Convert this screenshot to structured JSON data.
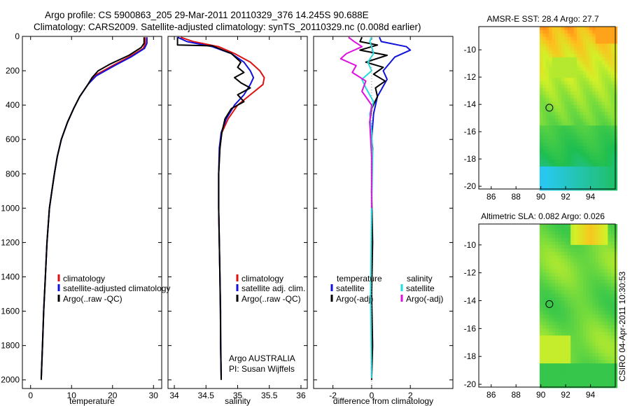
{
  "header": {
    "line1": "Argo profile: CS 5900863_205 29-Mar-2011 20110329_376 14.245S 90.688E",
    "line2": "Climatology: CARS2009. Satellite-adjusted climatology: synTS_20110329.nc (0.008d earlier)"
  },
  "side_label": "CSIRO 04-Apr-2011 10:30:53",
  "colors": {
    "climatology": "#dd1111",
    "satellite": "#1111dd",
    "argo": "#000000",
    "salinity_satellite": "#22dddd",
    "salinity_argo": "#dd11dd"
  },
  "chart_data": [
    {
      "type": "line",
      "id": "temperature",
      "xlabel": "temperature",
      "ylabel": "",
      "xlim": [
        -2,
        32
      ],
      "ylim": [
        2050,
        0
      ],
      "xticks": [
        "0",
        "10",
        "20",
        "30"
      ],
      "yticks": [
        "0",
        "200",
        "400",
        "600",
        "800",
        "1000",
        "1200",
        "1400",
        "1600",
        "1800",
        "2000"
      ],
      "legend": [
        "climatology",
        "satellite-adjusted climatology",
        "Argo(..raw -QC)"
      ],
      "series": [
        {
          "name": "climatology",
          "color_key": "climatology",
          "x": [
            28.0,
            28.0,
            27.5,
            24.0,
            20.0,
            15.5,
            14.0,
            12.0,
            10.5,
            9.0,
            7.5,
            6.5,
            5.8,
            5.2,
            4.6,
            4.0,
            3.6,
            3.2,
            2.9,
            2.6
          ],
          "y": [
            5,
            40,
            70,
            120,
            170,
            230,
            280,
            350,
            420,
            500,
            600,
            700,
            800,
            900,
            1000,
            1200,
            1400,
            1600,
            1800,
            1990
          ]
        },
        {
          "name": "satellite-adjusted climatology",
          "color_key": "satellite",
          "x": [
            28.4,
            28.4,
            27.8,
            24.5,
            20.5,
            16.0,
            14.0,
            12.0,
            10.5,
            9.0,
            7.5,
            6.5,
            5.8,
            5.2,
            4.6,
            4.0,
            3.6,
            3.2,
            2.9,
            2.6
          ],
          "y": [
            5,
            40,
            70,
            120,
            170,
            230,
            280,
            350,
            420,
            500,
            600,
            700,
            800,
            900,
            1000,
            1200,
            1400,
            1600,
            1800,
            1990
          ]
        },
        {
          "name": "Argo(..raw -QC)",
          "color_key": "argo",
          "x": [
            27.7,
            27.7,
            27.0,
            24.0,
            19.5,
            16.5,
            15.0,
            14.0,
            12.0,
            10.5,
            9.0,
            7.5,
            6.5,
            5.8,
            5.2,
            4.6,
            4.0,
            3.6,
            3.2,
            2.9,
            2.6
          ],
          "y": [
            5,
            40,
            65,
            110,
            160,
            200,
            240,
            280,
            350,
            420,
            500,
            600,
            700,
            800,
            900,
            1000,
            1200,
            1400,
            1600,
            1800,
            2000
          ]
        }
      ]
    },
    {
      "type": "line",
      "id": "salinity",
      "xlabel": "salinity",
      "ylabel": "",
      "xlim": [
        33.9,
        36.1
      ],
      "ylim": [
        2050,
        0
      ],
      "xticks": [
        "34",
        "34.5",
        "35",
        "35.5",
        "36"
      ],
      "legend": [
        "climatology",
        "satellite adj. clim.",
        "Argo(..raw -QC)"
      ],
      "annotations": [
        "Argo AUSTRALIA",
        "PI: Susan Wijffels"
      ],
      "series": [
        {
          "name": "climatology",
          "color_key": "climatology",
          "x": [
            34.1,
            34.3,
            34.7,
            34.95,
            35.2,
            35.35,
            35.42,
            35.4,
            35.2,
            35.0,
            34.85,
            34.75,
            34.72,
            34.7,
            34.7,
            34.71,
            34.72,
            34.73,
            34.73,
            34.74
          ],
          "y": [
            5,
            30,
            60,
            100,
            150,
            200,
            240,
            280,
            340,
            400,
            480,
            560,
            650,
            800,
            1000,
            1200,
            1400,
            1600,
            1800,
            1990
          ]
        },
        {
          "name": "satellite adj. clim.",
          "color_key": "satellite",
          "x": [
            34.05,
            34.2,
            34.6,
            34.9,
            35.1,
            35.2,
            35.25,
            35.2,
            35.1,
            34.95,
            34.82,
            34.74,
            34.71,
            34.7,
            34.7,
            34.71,
            34.72,
            34.73,
            34.73,
            34.74
          ],
          "y": [
            5,
            30,
            60,
            100,
            150,
            200,
            240,
            280,
            340,
            400,
            480,
            560,
            650,
            800,
            1000,
            1200,
            1400,
            1600,
            1800,
            1990
          ]
        },
        {
          "name": "Argo(..raw -QC)",
          "color_key": "argo",
          "x": [
            34.05,
            34.05,
            34.6,
            34.9,
            35.05,
            35.0,
            35.1,
            34.95,
            35.05,
            35.2,
            35.0,
            35.1,
            34.9,
            34.8,
            34.75,
            34.72,
            34.7,
            34.7,
            34.71,
            34.72,
            34.73,
            34.74
          ],
          "y": [
            5,
            50,
            55,
            100,
            150,
            180,
            210,
            240,
            270,
            300,
            340,
            380,
            420,
            480,
            560,
            650,
            800,
            1000,
            1200,
            1400,
            1700,
            2000
          ]
        }
      ]
    },
    {
      "type": "line",
      "id": "difference",
      "xlabel": "difference from climatology",
      "ylabel": "",
      "xlim": [
        -3,
        4.2
      ],
      "ylim": [
        2050,
        0
      ],
      "xticks": [
        "-2",
        "0",
        "2"
      ],
      "legend": [
        "temperature",
        "satellite",
        "Argo(-adj)",
        "salinity",
        "satellite",
        "Argo(-adj)"
      ],
      "series": [
        {
          "name": "satellite",
          "legend_group": "temperature",
          "color_key": "satellite",
          "x": [
            0.4,
            0.5,
            1.8,
            2.0,
            1.2,
            0.6,
            0.8,
            0.3,
            0.1,
            0.0,
            0.0,
            0.0,
            0.0
          ],
          "y": [
            5,
            30,
            60,
            80,
            120,
            200,
            250,
            350,
            450,
            600,
            1000,
            1500,
            1990
          ]
        },
        {
          "name": "Argo(-adj)",
          "legend_group": "temperature",
          "color_key": "argo",
          "x": [
            -0.5,
            -0.6,
            0.3,
            -0.6,
            0.8,
            -0.3,
            0.6,
            0.1,
            0.7,
            0.2,
            0.3,
            0.0,
            -0.1,
            0.05,
            0.0,
            0.05,
            0.0,
            0.05,
            0.0
          ],
          "y": [
            5,
            30,
            50,
            80,
            110,
            150,
            180,
            220,
            260,
            300,
            350,
            420,
            500,
            650,
            900,
            1200,
            1500,
            1800,
            2000
          ]
        },
        {
          "name": "satellite",
          "legend_group": "salinity",
          "color_key": "salinity_satellite",
          "x": [
            0.0,
            -0.1,
            0.0,
            0.1,
            -0.2,
            0.0,
            -0.5,
            -0.3,
            0.1,
            -0.1,
            0.0,
            0.05,
            0.0,
            -0.05,
            0.0
          ],
          "y": [
            5,
            30,
            60,
            100,
            150,
            200,
            250,
            300,
            380,
            450,
            550,
            700,
            1000,
            1500,
            1990
          ]
        },
        {
          "name": "Argo(-adj)",
          "legend_group": "salinity",
          "color_key": "salinity_argo",
          "x": [
            -1.2,
            -0.9,
            -0.5,
            -1.3,
            -1.6,
            -0.8,
            -1.0,
            -0.3,
            -0.5,
            0.0,
            -0.1,
            0.0,
            0.0
          ],
          "y": [
            5,
            30,
            60,
            100,
            130,
            170,
            210,
            260,
            320,
            400,
            500,
            700,
            1000
          ]
        }
      ]
    },
    {
      "type": "heatmap",
      "id": "sst",
      "title": "AMSR-E SST: 28.4 Argo: 27.7",
      "xlim": [
        85,
        96
      ],
      "ylim": [
        -20.2,
        -8.3
      ],
      "xticks": [
        "86",
        "88",
        "90",
        "92",
        "94"
      ],
      "yticks": [
        "-10",
        "-12",
        "-14",
        "-16",
        "-18",
        "-20"
      ],
      "data_lon_range": [
        89.9,
        96
      ],
      "marker": {
        "lon": 90.688,
        "lat": -14.245
      }
    },
    {
      "type": "heatmap",
      "id": "sla",
      "title": "Altimetric SLA: 0.082 Argo: 0.026",
      "xlim": [
        85,
        96
      ],
      "ylim": [
        -20.2,
        -8.5
      ],
      "xticks": [
        "86",
        "88",
        "90",
        "92",
        "94"
      ],
      "yticks": [
        "-10",
        "-12",
        "-14",
        "-16",
        "-18",
        "-20"
      ],
      "data_lon_range": [
        89.9,
        96
      ],
      "marker": {
        "lon": 90.688,
        "lat": -14.245
      }
    }
  ]
}
